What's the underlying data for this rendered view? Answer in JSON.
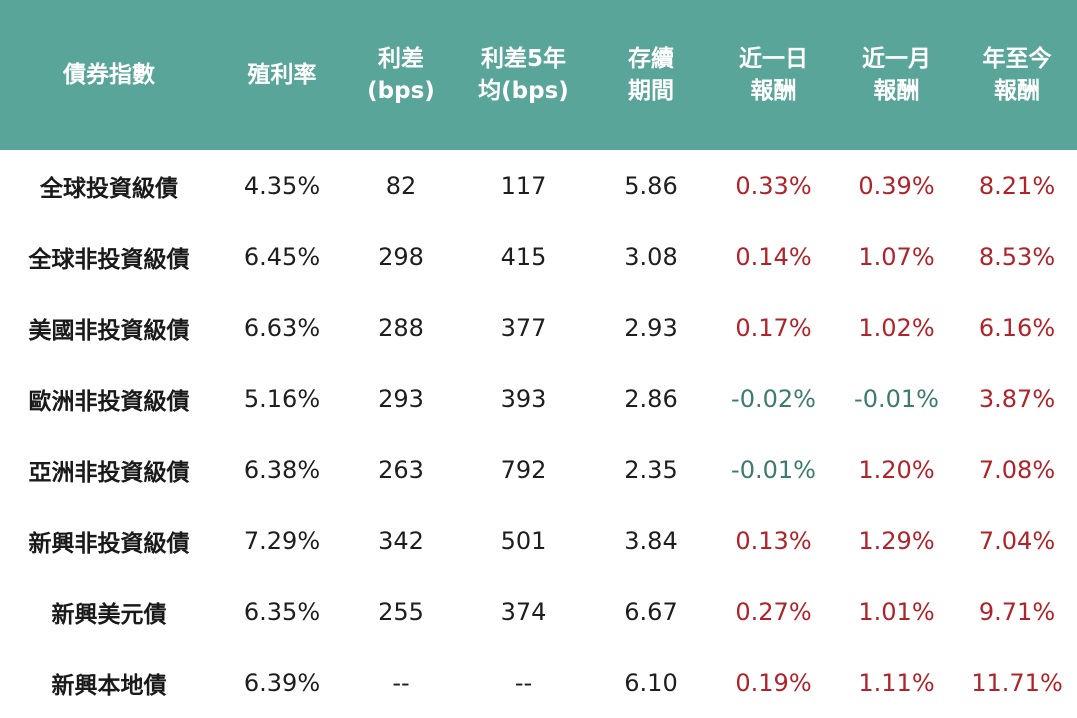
{
  "header": {
    "index": [
      "債券指數"
    ],
    "yield": [
      "殖利率"
    ],
    "spread": [
      "利差",
      "(bps)"
    ],
    "spread5y": [
      "利差5年",
      "均(bps)"
    ],
    "duration": [
      "存續",
      "期間"
    ],
    "ret1d": [
      "近一日",
      "報酬"
    ],
    "ret1m": [
      "近一月",
      "報酬"
    ],
    "retytd": [
      "年至今",
      "報酬"
    ]
  },
  "colors": {
    "header_bg": "#5aa59a",
    "positive": "#b0232a",
    "negative": "#3d7a70"
  },
  "rows": [
    {
      "name": "全球投資級債",
      "yield": "4.35%",
      "spread": "82",
      "spread5y": "117",
      "duration": "5.86",
      "ret1d": "0.33%",
      "ret1m": "0.39%",
      "retytd": "8.21%"
    },
    {
      "name": "全球非投資級債",
      "yield": "6.45%",
      "spread": "298",
      "spread5y": "415",
      "duration": "3.08",
      "ret1d": "0.14%",
      "ret1m": "1.07%",
      "retytd": "8.53%"
    },
    {
      "name": "美國非投資級債",
      "yield": "6.63%",
      "spread": "288",
      "spread5y": "377",
      "duration": "2.93",
      "ret1d": "0.17%",
      "ret1m": "1.02%",
      "retytd": "6.16%"
    },
    {
      "name": "歐洲非投資級債",
      "yield": "5.16%",
      "spread": "293",
      "spread5y": "393",
      "duration": "2.86",
      "ret1d": "-0.02%",
      "ret1m": "-0.01%",
      "retytd": "3.87%"
    },
    {
      "name": "亞洲非投資級債",
      "yield": "6.38%",
      "spread": "263",
      "spread5y": "792",
      "duration": "2.35",
      "ret1d": "-0.01%",
      "ret1m": "1.20%",
      "retytd": "7.08%"
    },
    {
      "name": "新興非投資級債",
      "yield": "7.29%",
      "spread": "342",
      "spread5y": "501",
      "duration": "3.84",
      "ret1d": "0.13%",
      "ret1m": "1.29%",
      "retytd": "7.04%"
    },
    {
      "name": "新興美元債",
      "yield": "6.35%",
      "spread": "255",
      "spread5y": "374",
      "duration": "6.67",
      "ret1d": "0.27%",
      "ret1m": "1.01%",
      "retytd": "9.71%"
    },
    {
      "name": "新興本地債",
      "yield": "6.39%",
      "spread": "--",
      "spread5y": "--",
      "duration": "6.10",
      "ret1d": "0.19%",
      "ret1m": "1.11%",
      "retytd": "11.71%"
    }
  ]
}
